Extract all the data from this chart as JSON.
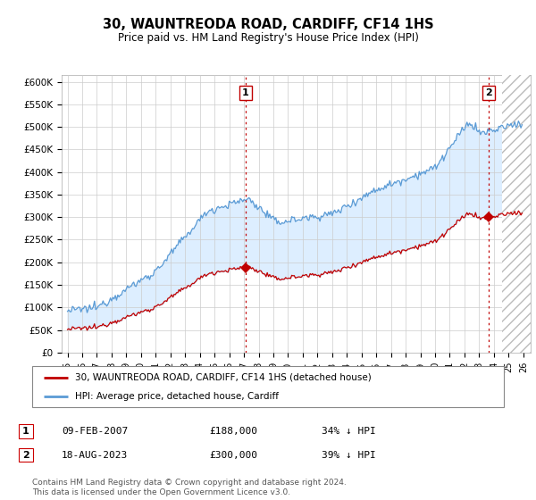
{
  "title": "30, WAUNTREODA ROAD, CARDIFF, CF14 1HS",
  "subtitle": "Price paid vs. HM Land Registry's House Price Index (HPI)",
  "ylabel_ticks": [
    "£0",
    "£50K",
    "£100K",
    "£150K",
    "£200K",
    "£250K",
    "£300K",
    "£350K",
    "£400K",
    "£450K",
    "£500K",
    "£550K",
    "£600K"
  ],
  "ytick_values": [
    0,
    50000,
    100000,
    150000,
    200000,
    250000,
    300000,
    350000,
    400000,
    450000,
    500000,
    550000,
    600000
  ],
  "ylim": [
    0,
    615000
  ],
  "xlim_start": 1994.6,
  "xlim_end": 2026.5,
  "xtick_years": [
    1995,
    1996,
    1997,
    1998,
    1999,
    2000,
    2001,
    2002,
    2003,
    2004,
    2005,
    2006,
    2007,
    2008,
    2009,
    2010,
    2011,
    2012,
    2013,
    2014,
    2015,
    2016,
    2017,
    2018,
    2019,
    2020,
    2021,
    2022,
    2023,
    2024,
    2025,
    2026
  ],
  "hpi_color": "#5b9bd5",
  "hpi_fill_color": "#ddeeff",
  "price_color": "#c00000",
  "vline_color": "#c00000",
  "marker1_x": 2007.1,
  "marker1_y": 188000,
  "marker2_x": 2023.63,
  "marker2_y": 300000,
  "marker1_label": "1",
  "marker2_label": "2",
  "legend_line1": "30, WAUNTREODA ROAD, CARDIFF, CF14 1HS (detached house)",
  "legend_line2": "HPI: Average price, detached house, Cardiff",
  "table_row1": [
    "1",
    "09-FEB-2007",
    "£188,000",
    "34% ↓ HPI"
  ],
  "table_row2": [
    "2",
    "18-AUG-2023",
    "£300,000",
    "39% ↓ HPI"
  ],
  "footer": "Contains HM Land Registry data © Crown copyright and database right 2024.\nThis data is licensed under the Open Government Licence v3.0.",
  "background_color": "#ffffff",
  "grid_color": "#cccccc",
  "hatch_start": 2024.58
}
